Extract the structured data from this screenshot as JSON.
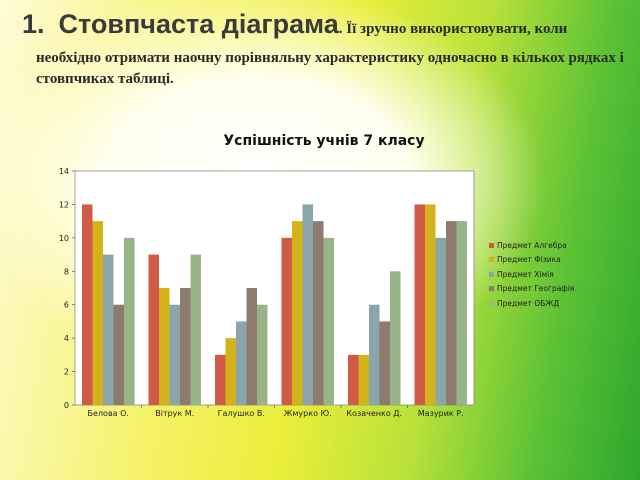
{
  "slide": {
    "number": "1.",
    "heading": "Стовпчаста діаграма",
    "heading_tail": ". Її зручно використовувати, коли",
    "paragraph": "необхідно отримати наочну порівняльну характеристику одночасно в кількох рядках і стовпчиках таблиці."
  },
  "chart_data": {
    "type": "bar",
    "title": "Успішність учнів 7 класу",
    "categories": [
      "Белова О.",
      "Вітрук М.",
      "Галушко В.",
      "Жмурко Ю.",
      "Козаченко Д.",
      "Мазурик Р."
    ],
    "series": [
      {
        "name": "Предмет Алгебра",
        "color": "#cf5a45",
        "values": [
          12,
          9,
          3,
          10,
          3,
          12
        ]
      },
      {
        "name": "Предмет Фізика",
        "color": "#d4b21a",
        "values": [
          11,
          7,
          4,
          11,
          3,
          12
        ]
      },
      {
        "name": "Предмет Хімія",
        "color": "#8aa6ab",
        "values": [
          9,
          6,
          5,
          12,
          6,
          10
        ]
      },
      {
        "name": "Предмет Географія",
        "color": "#8e7b6e",
        "values": [
          6,
          7,
          7,
          11,
          5,
          11
        ]
      },
      {
        "name": "Предмет ОБЖД",
        "color": "#98b589",
        "values": [
          10,
          9,
          6,
          10,
          8,
          11
        ]
      }
    ],
    "ylim": [
      0,
      14
    ],
    "yticks": [
      0,
      2,
      4,
      6,
      8,
      10,
      12,
      14
    ],
    "grid": false,
    "legend": "right"
  }
}
